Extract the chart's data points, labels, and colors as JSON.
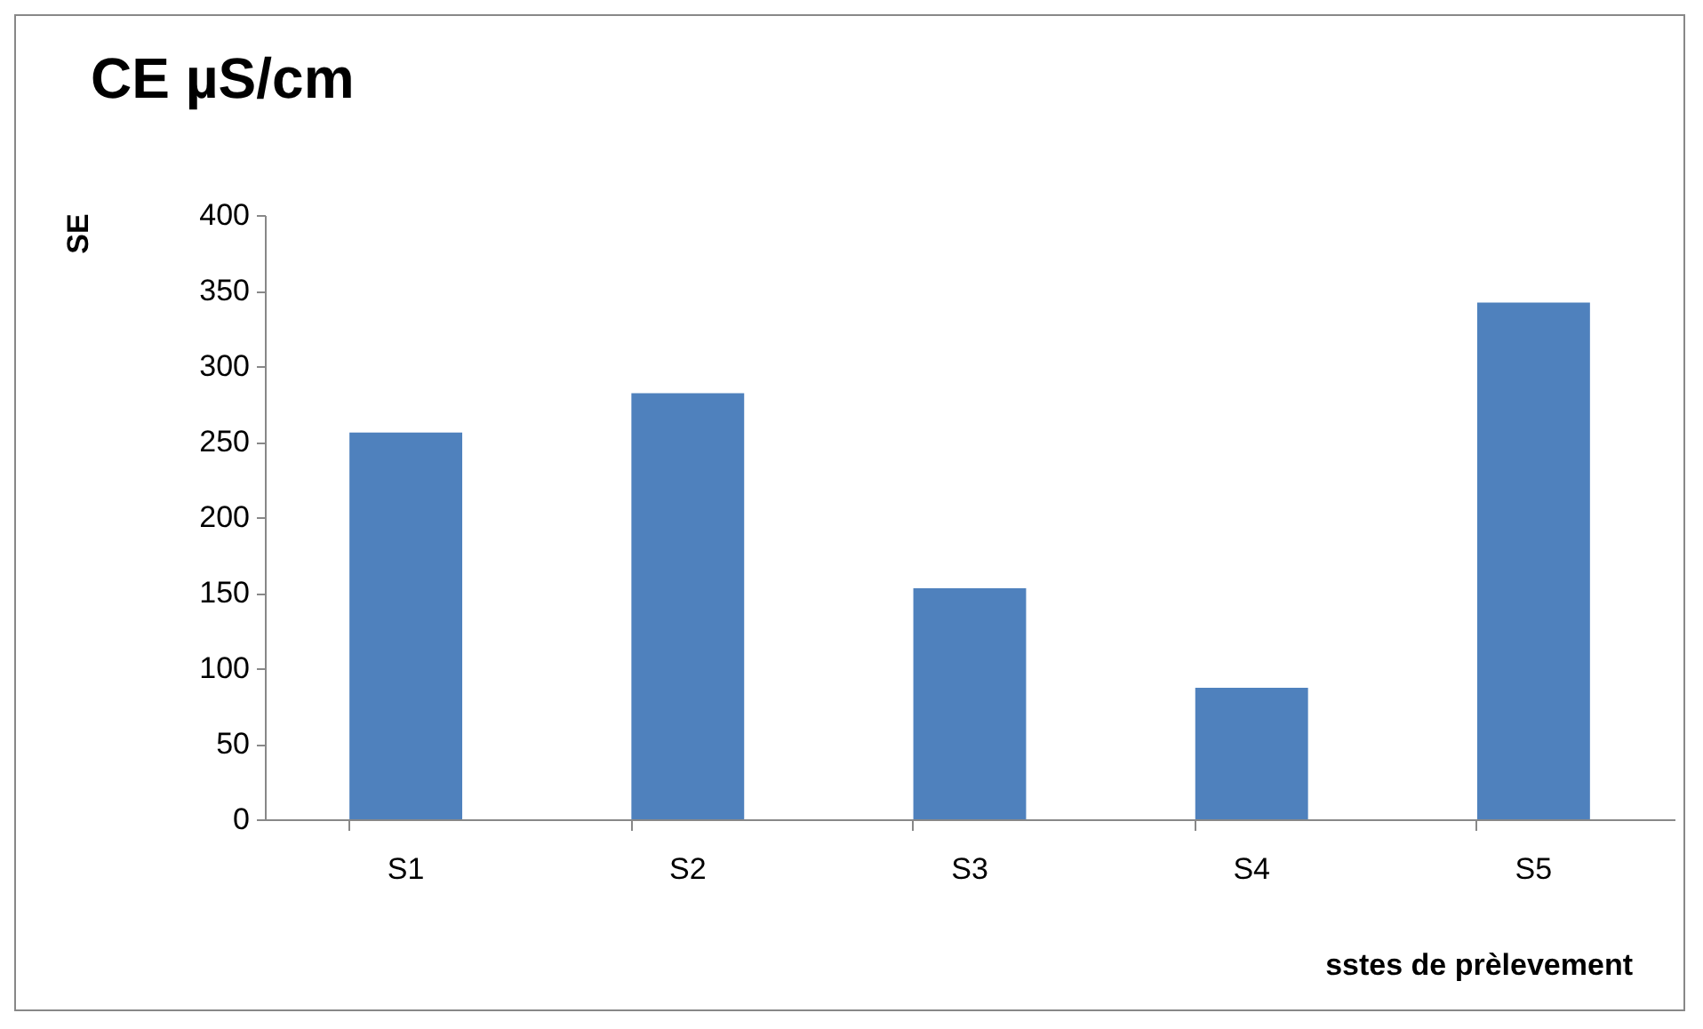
{
  "chart_data": {
    "type": "bar",
    "title": "CE µS/cm",
    "xlabel": "sstes de prèlevement",
    "ylabel": "SE",
    "categories": [
      "S1",
      "S2",
      "S3",
      "S4",
      "S5"
    ],
    "values": [
      256,
      282,
      153,
      87,
      342
    ],
    "color": "#4f81bd",
    "ylim": [
      0,
      400
    ],
    "yticks": [
      0,
      50,
      100,
      150,
      200,
      250,
      300,
      350,
      400
    ]
  }
}
